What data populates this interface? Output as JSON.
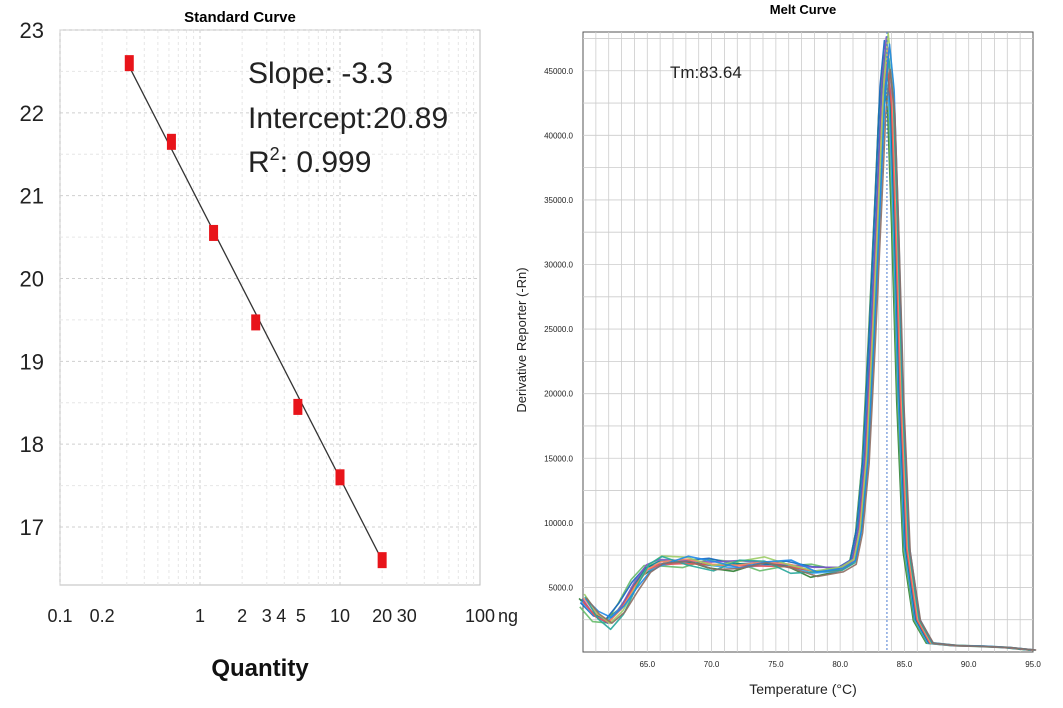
{
  "chart_data": [
    {
      "type": "scatter",
      "title": "Standard Curve",
      "xlabel": "Quantity",
      "ylabel": "",
      "x_scale": "log",
      "x_tick_labels": [
        "0.1",
        "0.2",
        "1",
        "2",
        "3",
        "4",
        "5",
        "10",
        "20",
        "30",
        "100"
      ],
      "x_unit_label": "ng",
      "y_tick_labels": [
        "17",
        "18",
        "19",
        "20",
        "21",
        "22",
        "23"
      ],
      "xlim": [
        0.1,
        100
      ],
      "ylim": [
        16.3,
        23
      ],
      "grid": true,
      "annotations": {
        "slope": "Slope: -3.3",
        "intercept": "Intercept:20.89",
        "r2_prefix": "R",
        "r2_sup": "2",
        "r2_value": ": 0.999"
      },
      "fit_line": {
        "slope": -3.3,
        "intercept": 20.89
      },
      "series": [
        {
          "points": [
            {
              "x": 0.3125,
              "y": 22.6
            },
            {
              "x": 0.625,
              "y": 21.65
            },
            {
              "x": 1.25,
              "y": 20.55
            },
            {
              "x": 2.5,
              "y": 19.47
            },
            {
              "x": 5,
              "y": 18.45
            },
            {
              "x": 10,
              "y": 17.6
            },
            {
              "x": 20,
              "y": 16.6
            }
          ]
        }
      ]
    },
    {
      "type": "line",
      "title": "Melt Curve",
      "xlabel": "Temperature (°C)",
      "ylabel": "Derivative Reporter (-Rn)",
      "x_tick_labels": [
        "65.0",
        "70.0",
        "75.0",
        "80.0",
        "85.0",
        "90.0",
        "95.0"
      ],
      "y_tick_labels": [
        "5000.0",
        "10000.0",
        "15000.0",
        "20000.0",
        "25000.0",
        "30000.0",
        "35000.0",
        "40000.0",
        "45000.0"
      ],
      "xlim": [
        60,
        95
      ],
      "ylim": [
        0,
        48000
      ],
      "grid": true,
      "annotation": "Tm:83.64",
      "tm": 83.64,
      "series_colors": [
        "#2e7d32",
        "#66bb6a",
        "#1565c0",
        "#42a5f5",
        "#00838f",
        "#7e57c2",
        "#ef5350",
        "#ff8a65",
        "#9ccc65",
        "#26a69a",
        "#1e88e5",
        "#8d6e63"
      ],
      "profile": {
        "x": [
          60,
          61,
          62,
          63,
          64,
          65,
          66,
          68,
          70,
          72,
          74,
          76,
          78,
          80,
          81,
          81.5,
          82,
          82.5,
          83,
          83.3,
          83.64,
          84,
          84.3,
          84.7,
          85.2,
          86,
          87,
          89,
          91,
          93,
          95
        ],
        "y": [
          4000,
          2700,
          2200,
          3400,
          5200,
          6600,
          7000,
          6900,
          6800,
          6900,
          6800,
          6600,
          6400,
          6400,
          7000,
          9500,
          15000,
          25000,
          36000,
          43000,
          46500,
          43000,
          34000,
          20000,
          8000,
          2500,
          700,
          500,
          450,
          350,
          150
        ]
      }
    }
  ]
}
